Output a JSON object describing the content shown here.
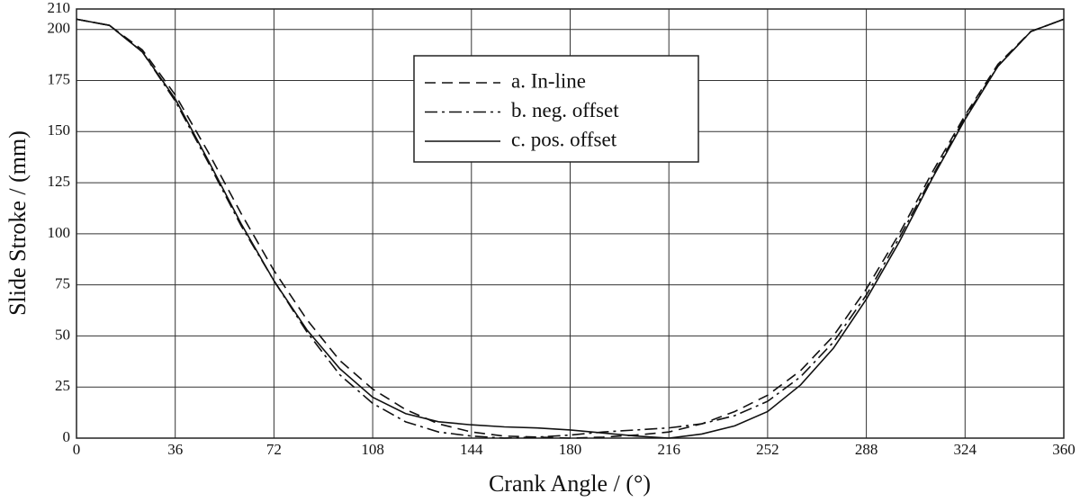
{
  "chart_data": {
    "type": "line",
    "x_label": "Crank Angle / (°)",
    "y_label": "Slide Stroke / (mm)",
    "x": [
      0,
      12,
      24,
      36,
      48,
      60,
      72,
      84,
      96,
      108,
      120,
      132,
      144,
      156,
      168,
      180,
      192,
      204,
      216,
      228,
      240,
      252,
      264,
      276,
      288,
      300,
      312,
      324,
      336,
      348,
      360
    ],
    "series": [
      {
        "name": "a. In-line",
        "color": "#111111",
        "dash": "dashed",
        "values": [
          205,
          202,
          190,
          168,
          140,
          110,
          82,
          58,
          38,
          24,
          14,
          7,
          3,
          1,
          0.5,
          0,
          0.5,
          1.5,
          3,
          7,
          13,
          21,
          33,
          50,
          73,
          100,
          130,
          158,
          183,
          199,
          205
        ]
      },
      {
        "name": "b. neg. offset",
        "color": "#111111",
        "dash": "dashdot",
        "values": [
          205,
          202,
          189,
          165,
          135,
          104,
          77,
          52,
          31,
          17,
          8,
          3,
          1,
          0,
          0.5,
          1.5,
          3,
          4,
          5,
          7,
          11,
          18,
          30,
          47,
          70,
          98,
          128,
          157,
          182,
          199,
          205
        ]
      },
      {
        "name": "c. pos. offset",
        "color": "#111111",
        "dash": "solid",
        "values": [
          205,
          202,
          189,
          166,
          136,
          105,
          77,
          53,
          34,
          20,
          12,
          8,
          6.5,
          5.5,
          5,
          4,
          2.5,
          1,
          0,
          2,
          6,
          13,
          26,
          44,
          68,
          96,
          127,
          156,
          182,
          199,
          205
        ]
      }
    ],
    "xlim": [
      0,
      360
    ],
    "xticks": [
      0,
      36,
      72,
      108,
      144,
      180,
      216,
      252,
      288,
      324,
      360
    ],
    "ylim": [
      0,
      210
    ],
    "yticks": [
      0,
      25,
      50,
      75,
      100,
      125,
      150,
      175,
      200,
      210
    ],
    "grid": true,
    "legend": "top-center"
  }
}
